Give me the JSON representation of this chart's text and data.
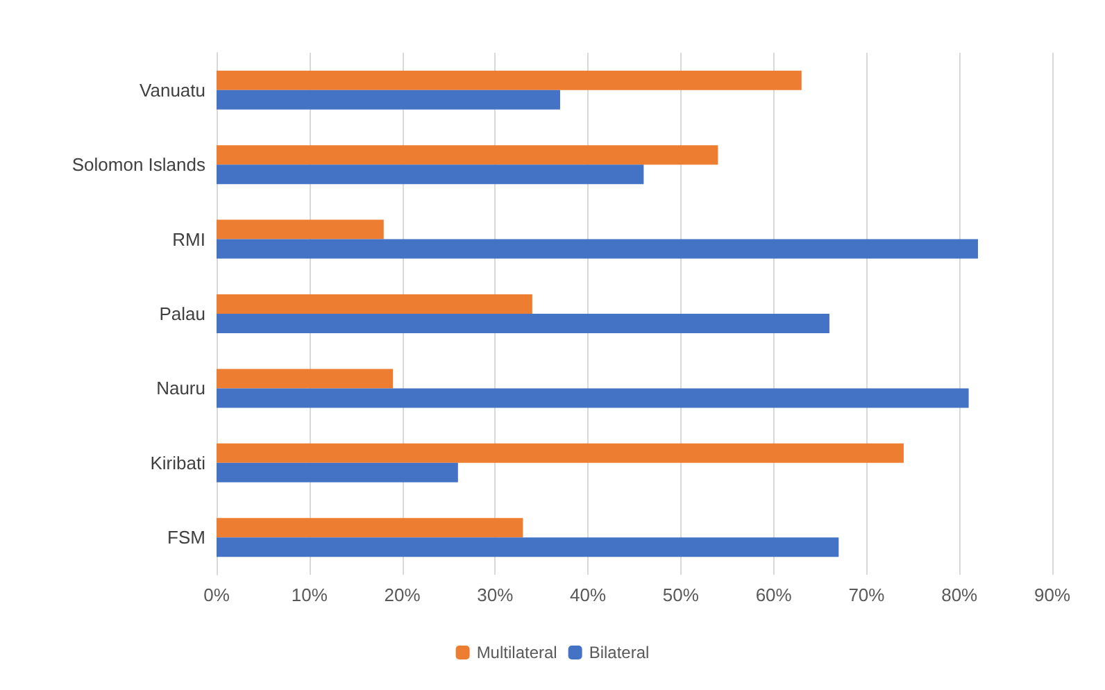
{
  "chart_data": {
    "type": "bar",
    "orientation": "horizontal",
    "categories": [
      "Vanuatu",
      "Solomon Islands",
      "RMI",
      "Palau",
      "Nauru",
      "Kiribati",
      "FSM"
    ],
    "series": [
      {
        "name": "Multilateral",
        "color": "#ed7d31",
        "values": [
          63,
          54,
          18,
          34,
          19,
          74,
          33
        ]
      },
      {
        "name": "Bilateral",
        "color": "#4472c4",
        "values": [
          37,
          46,
          82,
          66,
          81,
          26,
          67
        ]
      }
    ],
    "xlim": [
      0,
      90
    ],
    "xticks": [
      {
        "value": 0,
        "label": "0%"
      },
      {
        "value": 10,
        "label": "10%"
      },
      {
        "value": 20,
        "label": "20%"
      },
      {
        "value": 30,
        "label": "30%"
      },
      {
        "value": 40,
        "label": "40%"
      },
      {
        "value": 50,
        "label": "50%"
      },
      {
        "value": 60,
        "label": "60%"
      },
      {
        "value": 70,
        "label": "70%"
      },
      {
        "value": 80,
        "label": "80%"
      },
      {
        "value": 90,
        "label": "90%"
      }
    ],
    "grid": "x",
    "legend": "bottom"
  }
}
